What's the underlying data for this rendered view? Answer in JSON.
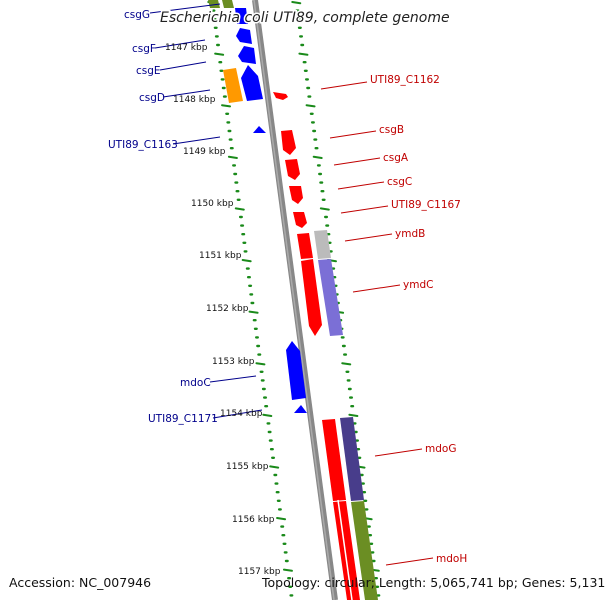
{
  "title": "Escherichia coli UTI89, complete genome",
  "footer": {
    "accession": "Accession: NC_007946",
    "summary": "Topology: circular; Length: 5,065,741 bp; Genes: 5,131"
  },
  "colors": {
    "forward_strand": "#ff0000",
    "reverse_strand": "#0000ff",
    "reverse_label": "#00008b",
    "forward_label": "#c00000",
    "tick": "#1a8a1a",
    "backbone": "#888888",
    "orange_feature": "#ff9900",
    "cog_green": "#6b8e23",
    "cog_grey": "#bbbbbb",
    "cog_purple": "#7b6fd6",
    "cog_darkpurple": "#483d8b"
  },
  "ticks": [
    "1147 kbp",
    "1148 kbp",
    "1149 kbp",
    "1150 kbp",
    "1151 kbp",
    "1152 kbp",
    "1153 kbp",
    "1154 kbp",
    "1155 kbp",
    "1156 kbp",
    "1157 kbp"
  ],
  "genes_reverse": [
    "csgG",
    "csgF",
    "csgE",
    "csgD",
    "UTI89_C1163",
    "mdoC",
    "UTI89_C1171"
  ],
  "genes_forward": [
    "UTI89_C1162",
    "csgB",
    "csgA",
    "csgC",
    "UTI89_C1167",
    "ymdB",
    "ymdC",
    "mdoG",
    "mdoH"
  ]
}
